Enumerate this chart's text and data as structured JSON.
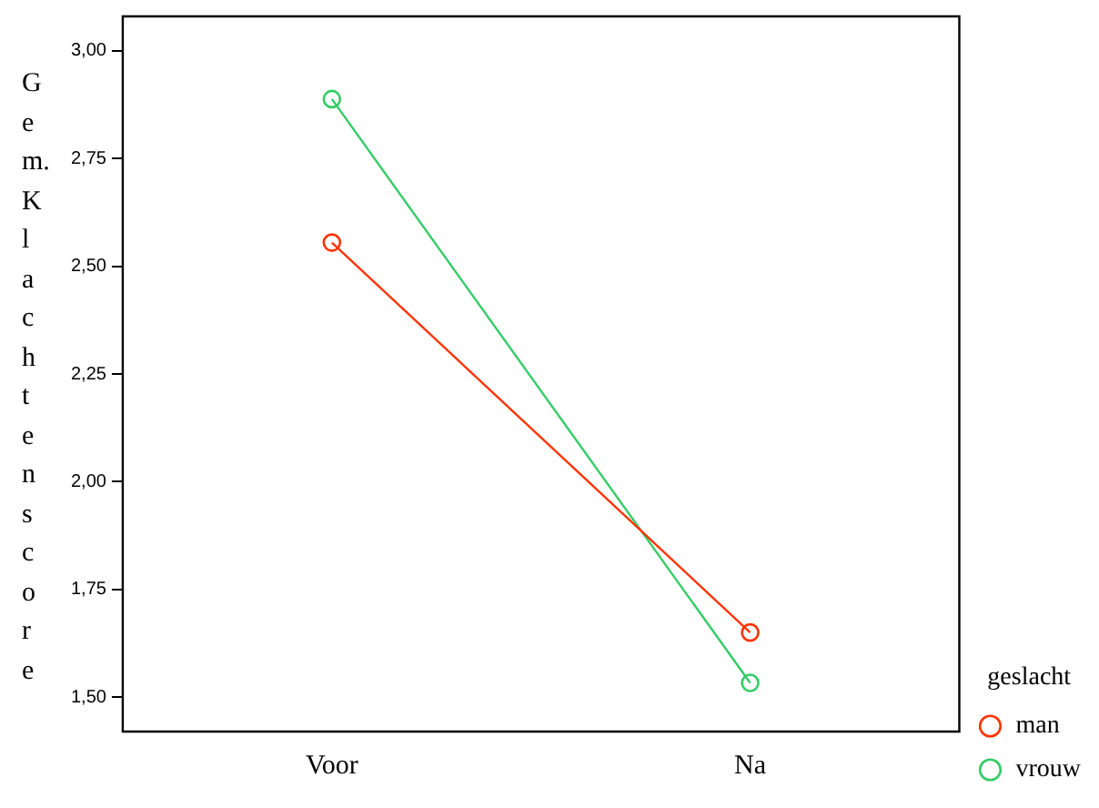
{
  "chart_data": {
    "type": "line",
    "ylabel": "Gem. Klachtenscore",
    "legend_title": "geslacht",
    "categories": [
      "Voor",
      "Na"
    ],
    "series": [
      {
        "name": "man",
        "color": "#ff3300",
        "values": [
          2.555,
          1.65
        ]
      },
      {
        "name": "vrouw",
        "color": "#33cc66",
        "values": [
          2.888,
          1.533
        ]
      }
    ],
    "ylim": [
      1.42,
      3.08
    ],
    "yticks": [
      {
        "value": 1.5,
        "label": "1,50"
      },
      {
        "value": 1.75,
        "label": "1,75"
      },
      {
        "value": 2,
        "label": "2,00"
      },
      {
        "value": 2.25,
        "label": "2,25"
      },
      {
        "value": 2.5,
        "label": "2,50"
      },
      {
        "value": 2.75,
        "label": "2,75"
      },
      {
        "value": 3,
        "label": "3,00"
      }
    ],
    "grid": false,
    "legend": "right",
    "marker": "circle",
    "line_style": "solid"
  }
}
